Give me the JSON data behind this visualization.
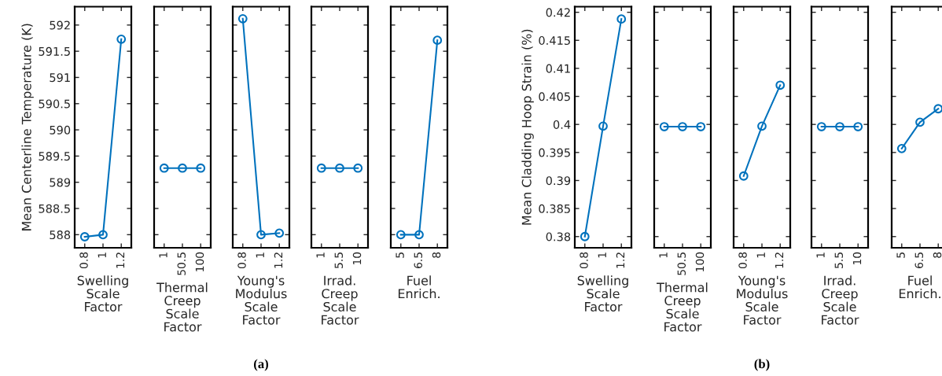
{
  "chart_data": [
    {
      "type": "line",
      "ylabel": "Mean Centerline Temperature (K)",
      "xlabel": "Swelling\nScale\nFactor",
      "categories": [
        "0.8",
        "1",
        "1.2"
      ],
      "series": [
        {
          "color": "#0072bd",
          "values": [
            587.96,
            588.0,
            591.73
          ]
        }
      ],
      "ylim": [
        587.75,
        592.35
      ],
      "yticks": [
        588,
        588.5,
        589,
        589.5,
        590,
        590.5,
        591,
        591.5,
        592
      ],
      "marker": "circle",
      "line_style": "solid"
    },
    {
      "type": "line",
      "xlabel": "Thermal\nCreep\nScale\nFactor",
      "categories": [
        "1",
        "50.5",
        "100"
      ],
      "series": [
        {
          "color": "#0072bd",
          "values": [
            589.27,
            589.27,
            589.27
          ]
        }
      ],
      "ylim": [
        587.75,
        592.35
      ],
      "yticks": [
        588,
        588.5,
        589,
        589.5,
        590,
        590.5,
        591,
        591.5,
        592
      ],
      "tick_labels": "x",
      "marker": "circle",
      "line_style": "solid"
    },
    {
      "type": "line",
      "xlabel": "Young's\nModulus\nScale\nFactor",
      "categories": [
        "0.8",
        "1",
        "1.2"
      ],
      "series": [
        {
          "color": "#0072bd",
          "values": [
            592.12,
            588.0,
            588.03
          ]
        }
      ],
      "ylim": [
        587.75,
        592.35
      ],
      "yticks": [
        588,
        588.5,
        589,
        589.5,
        590,
        590.5,
        591,
        591.5,
        592
      ],
      "tick_labels": "x",
      "marker": "circle",
      "line_style": "solid",
      "annotations": [
        "(a)"
      ]
    },
    {
      "type": "line",
      "xlabel": "Irrad.\nCreep\nScale\nFactor",
      "categories": [
        "1",
        "5.5",
        "10"
      ],
      "series": [
        {
          "color": "#0072bd",
          "values": [
            589.27,
            589.27,
            589.27
          ]
        }
      ],
      "ylim": [
        587.75,
        592.35
      ],
      "yticks": [
        588,
        588.5,
        589,
        589.5,
        590,
        590.5,
        591,
        591.5,
        592
      ],
      "tick_labels": "x",
      "marker": "circle",
      "line_style": "solid"
    },
    {
      "type": "line",
      "xlabel": "Fuel\nEnrich.",
      "categories": [
        "5",
        "6.5",
        "8"
      ],
      "series": [
        {
          "color": "#0072bd",
          "values": [
            588.0,
            588.0,
            591.71
          ]
        }
      ],
      "ylim": [
        587.75,
        592.35
      ],
      "yticks": [
        588,
        588.5,
        589,
        589.5,
        590,
        590.5,
        591,
        591.5,
        592
      ],
      "tick_labels": "x",
      "marker": "circle",
      "line_style": "solid"
    },
    {
      "type": "line",
      "ylabel": "Mean Cladding Hoop Strain (%)",
      "xlabel": "Swelling\nScale\nFactor",
      "categories": [
        "0.8",
        "1",
        "1.2"
      ],
      "series": [
        {
          "color": "#0072bd",
          "values": [
            0.38,
            0.3997,
            0.4188
          ]
        }
      ],
      "ylim": [
        0.378,
        0.421
      ],
      "yticks": [
        0.38,
        0.385,
        0.39,
        0.395,
        0.4,
        0.405,
        0.41,
        0.415,
        0.42
      ],
      "marker": "circle",
      "line_style": "solid"
    },
    {
      "type": "line",
      "xlabel": "Thermal\nCreep\nScale\nFactor",
      "categories": [
        "1",
        "50.5",
        "100"
      ],
      "series": [
        {
          "color": "#0072bd",
          "values": [
            0.3996,
            0.3996,
            0.3996
          ]
        }
      ],
      "ylim": [
        0.378,
        0.421
      ],
      "yticks": [
        0.38,
        0.385,
        0.39,
        0.395,
        0.4,
        0.405,
        0.41,
        0.415,
        0.42
      ],
      "tick_labels": "x",
      "marker": "circle",
      "line_style": "solid"
    },
    {
      "type": "line",
      "xlabel": "Young's\nModulus\nScale\nFactor",
      "categories": [
        "0.8",
        "1",
        "1.2"
      ],
      "series": [
        {
          "color": "#0072bd",
          "values": [
            0.3908,
            0.3997,
            0.407
          ]
        }
      ],
      "ylim": [
        0.378,
        0.421
      ],
      "yticks": [
        0.38,
        0.385,
        0.39,
        0.395,
        0.4,
        0.405,
        0.41,
        0.415,
        0.42
      ],
      "tick_labels": "x",
      "marker": "circle",
      "line_style": "solid",
      "annotations": [
        "(b)"
      ]
    },
    {
      "type": "line",
      "xlabel": "Irrad.\nCreep\nScale\nFactor",
      "categories": [
        "1",
        "5.5",
        "10"
      ],
      "series": [
        {
          "color": "#0072bd",
          "values": [
            0.3996,
            0.3996,
            0.3996
          ]
        }
      ],
      "ylim": [
        0.378,
        0.421
      ],
      "yticks": [
        0.38,
        0.385,
        0.39,
        0.395,
        0.4,
        0.405,
        0.41,
        0.415,
        0.42
      ],
      "tick_labels": "x",
      "marker": "circle",
      "line_style": "solid"
    },
    {
      "type": "line",
      "xlabel": "Fuel\nEnrich.",
      "categories": [
        "5",
        "6.5",
        "8"
      ],
      "series": [
        {
          "color": "#0072bd",
          "values": [
            0.3957,
            0.4004,
            0.4028
          ]
        }
      ],
      "ylim": [
        0.378,
        0.421
      ],
      "yticks": [
        0.38,
        0.385,
        0.39,
        0.395,
        0.4,
        0.405,
        0.41,
        0.415,
        0.42
      ],
      "tick_labels": "x",
      "marker": "circle",
      "line_style": "solid"
    }
  ]
}
